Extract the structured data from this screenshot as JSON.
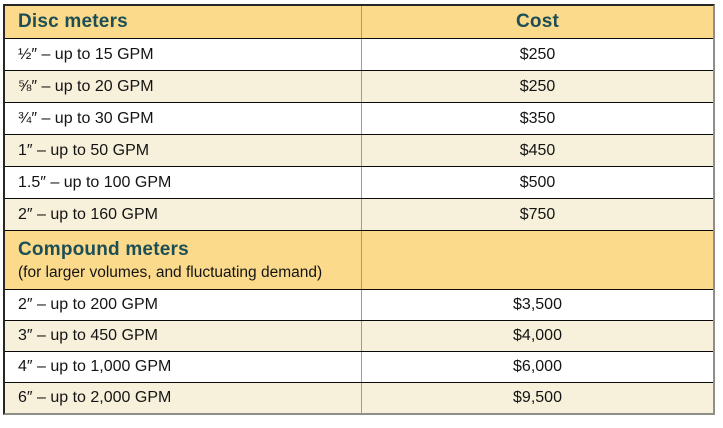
{
  "table": {
    "header": {
      "label": "Disc meters",
      "cost": "Cost"
    },
    "disc_rows": [
      {
        "label": "½″ – up to 15 GPM",
        "cost": "$250"
      },
      {
        "label": "⅝″ – up to 20 GPM",
        "cost": "$250"
      },
      {
        "label": "¾″ – up to 30 GPM",
        "cost": "$350"
      },
      {
        "label": "1″ – up to 50 GPM",
        "cost": "$450"
      },
      {
        "label": "1.5″ – up to 100 GPM",
        "cost": "$500"
      },
      {
        "label": "2″ – up to 160 GPM",
        "cost": "$750"
      }
    ],
    "compound_header": {
      "title": "Compound meters",
      "subtitle": "(for larger volumes, and fluctuating demand)"
    },
    "compound_rows": [
      {
        "label": "2″ – up to 200 GPM",
        "cost": "$3,500"
      },
      {
        "label": "3″ – up to 450 GPM",
        "cost": "$4,000"
      },
      {
        "label": "4″ – up to 1,000 GPM",
        "cost": "$6,000"
      },
      {
        "label": "6″ – up to 2,000 GPM",
        "cost": "$9,500"
      }
    ],
    "colors": {
      "header_bg": "#fbdb8b",
      "row_alt_bg": "#f7f0da",
      "row_bg": "#ffffff",
      "header_text": "#1d4e56",
      "body_text": "#141414",
      "row_border": "#0a0a0a",
      "column_divider": "#a29a8c"
    }
  }
}
